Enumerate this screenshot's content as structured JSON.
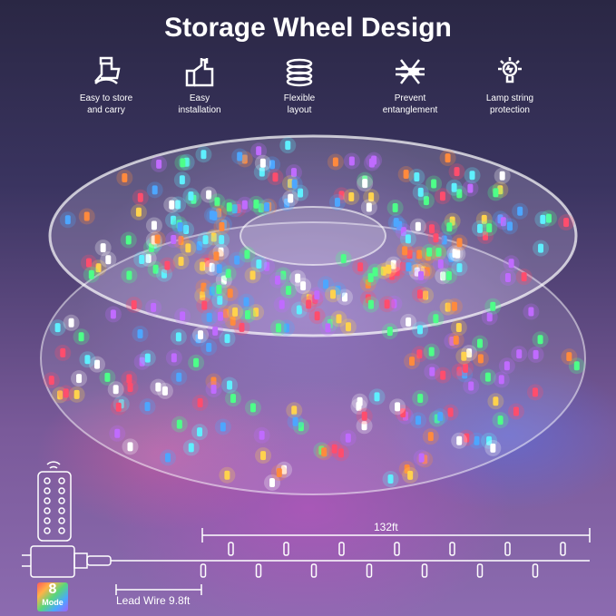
{
  "title": "Storage Wheel Design",
  "features": [
    {
      "icon": "hand-carry-icon",
      "label1": "Easy to store",
      "label2": "and carry"
    },
    {
      "icon": "thumbs-up-wrench-icon",
      "label1": "Easy",
      "label2": "installation"
    },
    {
      "icon": "coil-icon",
      "label1": "Flexible",
      "label2": "layout"
    },
    {
      "icon": "no-tangle-icon",
      "label1": "Prevent",
      "label2": "entanglement"
    },
    {
      "icon": "bulb-protection-icon",
      "label1": "Lamp string",
      "label2": "protection"
    }
  ],
  "length_label": "132ft",
  "lead_wire_label": "Lead Wire 9.8ft",
  "mode_badge": {
    "number": "8",
    "text": "Mode"
  },
  "led_colors": [
    "#ff4d6d",
    "#4dff88",
    "#4da6ff",
    "#ffd24d",
    "#ff8a3d",
    "#c06bff",
    "#5ef0ff",
    "#ffffff"
  ]
}
